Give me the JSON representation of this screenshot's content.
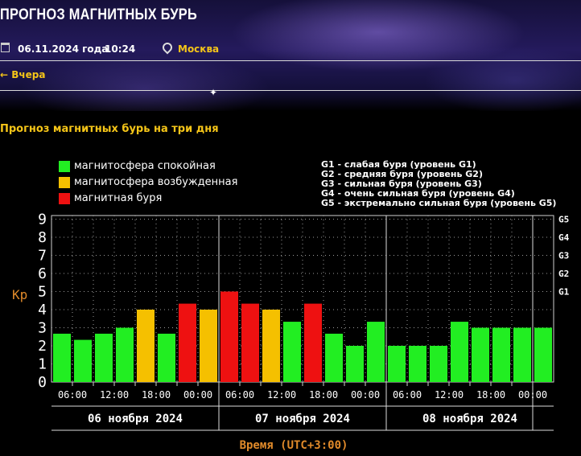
{
  "header": {
    "title": "ПРОГНОЗ МАГНИТНЫХ БУРЬ",
    "date": "06.11.2024 года",
    "time": "10:24",
    "city": "Москва"
  },
  "nav": {
    "back_label": "← Вчера"
  },
  "section_title": "Прогноз магнитных бурь на три дня",
  "legend": [
    {
      "label": "магнитосфера спокойная",
      "color": "#22ee22"
    },
    {
      "label": "магнитосфера возбужденная",
      "color": "#f5c000"
    },
    {
      "label": "магнитная буря",
      "color": "#ee1111"
    }
  ],
  "storm_levels": [
    "G1 - слабая буря (уровень G1)",
    "G2 - средняя буря (уровень G2)",
    "G3 - сильная буря (уровень G3)",
    "G4 - очень сильная буря (уровень G4)",
    "G5 - экстремально сильная буря (уровень G5)"
  ],
  "colors": {
    "quiet": "#22ee22",
    "active": "#f5c000",
    "storm": "#ee1111",
    "accent": "#f5c518",
    "axis_label": "#e08a2a"
  },
  "chart_data": {
    "type": "bar",
    "ylabel": "Kp",
    "xlabel": "Время (UTC+3:00)",
    "ylim": [
      0,
      9
    ],
    "yticks": [
      "0",
      "1",
      "2",
      "3",
      "4",
      "5",
      "6",
      "7",
      "8",
      "9"
    ],
    "right_ticks": [
      {
        "label": "G1",
        "value": 5
      },
      {
        "label": "G2",
        "value": 6
      },
      {
        "label": "G3",
        "value": 7
      },
      {
        "label": "G4",
        "value": 8
      },
      {
        "label": "G5",
        "value": 9
      }
    ],
    "time_ticks": [
      "06:00",
      "12:00",
      "18:00",
      "00:00",
      "06:00",
      "12:00",
      "18:00",
      "00:00",
      "06:00",
      "12:00",
      "18:00",
      "00:00"
    ],
    "days": [
      "06 ноября 2024",
      "07 ноября 2024",
      "08 ноября 2024"
    ],
    "values": [
      2.67,
      2.33,
      2.67,
      3.0,
      4.0,
      2.67,
      4.33,
      4.0,
      5.0,
      4.33,
      4.0,
      3.33,
      4.33,
      2.67,
      2.0,
      3.33,
      2.0,
      2.0,
      2.0,
      3.33,
      3.0,
      3.0,
      3.0,
      3.0
    ],
    "levels": [
      "quiet",
      "quiet",
      "quiet",
      "quiet",
      "active",
      "quiet",
      "storm",
      "active",
      "storm",
      "storm",
      "active",
      "quiet",
      "storm",
      "quiet",
      "quiet",
      "quiet",
      "quiet",
      "quiet",
      "quiet",
      "quiet",
      "quiet",
      "quiet",
      "quiet",
      "quiet"
    ],
    "grid": true,
    "legend_position": "top-left"
  }
}
